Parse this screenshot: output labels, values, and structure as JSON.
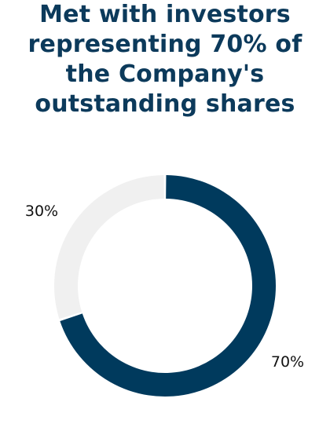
{
  "chart_data": {
    "type": "pie",
    "title_lines": [
      "Met with investors",
      "representing 70% of",
      "the Company's",
      "outstanding shares"
    ],
    "slices": [
      {
        "value": 70,
        "label": "70%",
        "color": "#003a5d"
      },
      {
        "value": 30,
        "label": "30%",
        "color": "#f0f0f0"
      }
    ],
    "donut": true
  }
}
